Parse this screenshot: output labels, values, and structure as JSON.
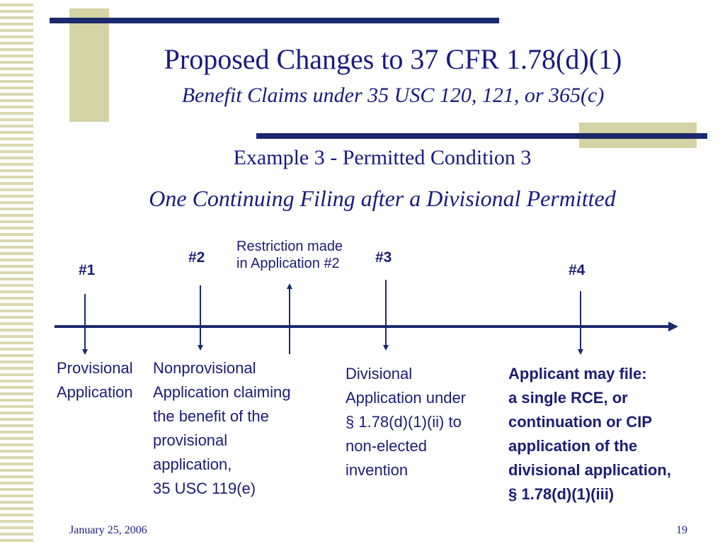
{
  "slide": {
    "title": "Proposed Changes to 37 CFR 1.78(d)(1)",
    "subtitle": "Benefit Claims under 35 USC 120, 121, or 365(c)",
    "heading": "Example 3 - Permitted Condition 3",
    "subheading": "One Continuing Filing after a Divisional Permitted"
  },
  "timeline": {
    "app1": "#1",
    "app2": "#2",
    "app3": "#3",
    "app4": "#4",
    "restriction_line1": "Restriction made",
    "restriction_line2": "in Application #2"
  },
  "descriptions": {
    "app1": [
      "Provisional",
      "Application"
    ],
    "app2": [
      "Nonprovisional",
      "Application claiming",
      "the benefit of the",
      "provisional",
      "application,",
      "35 USC 119(e)"
    ],
    "app3": [
      "Divisional",
      "Application under",
      "§ 1.78(d)(1)(ii) to",
      "non-elected",
      "invention"
    ],
    "app4": [
      "Applicant may file:",
      "a single RCE, or",
      "continuation or CIP",
      "application of the",
      "divisional application,",
      "§ 1.78(d)(1)(iii)"
    ]
  },
  "footer": {
    "date": "January 25, 2006",
    "page": "19"
  },
  "colors": {
    "navy": "#1a2a6c",
    "khaki": "#d3d3a4",
    "text": "#1a1a80"
  }
}
